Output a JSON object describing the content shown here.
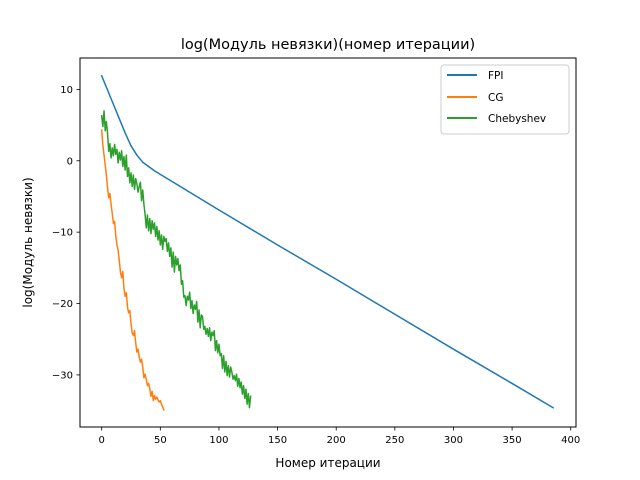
{
  "chart_data": {
    "type": "line",
    "title": "log(Модуль невязки)(номер итерации)",
    "xlabel": "Номер итерации",
    "ylabel": "log(Модуль невязки)",
    "xlim": [
      -18.5,
      404.5
    ],
    "ylim": [
      -37.3,
      14.4
    ],
    "xticks": [
      0,
      50,
      100,
      150,
      200,
      250,
      300,
      350,
      400
    ],
    "yticks": [
      10,
      0,
      -10,
      -20,
      -30
    ],
    "ytick_labels": [
      "10",
      "0",
      "−10",
      "−20",
      "−30"
    ],
    "grid": false,
    "legend_position": "top-right",
    "series": [
      {
        "name": "FPI",
        "color": "#1f77b4",
        "x": [
          0,
          5,
          10,
          15,
          20,
          25,
          30,
          35,
          40,
          45,
          50,
          100,
          150,
          200,
          250,
          300,
          350,
          385
        ],
        "y": [
          11.9,
          9.9,
          7.9,
          5.9,
          3.9,
          2.1,
          0.8,
          -0.2,
          -0.8,
          -1.4,
          -1.9,
          -6.9,
          -11.8,
          -16.6,
          -21.5,
          -26.4,
          -31.2,
          -34.6
        ]
      },
      {
        "name": "CG",
        "color": "#ff7f0e",
        "x": [
          0,
          1,
          2,
          3,
          4,
          5,
          6,
          7,
          8,
          9,
          10,
          11,
          12,
          13,
          14,
          15,
          16,
          17,
          18,
          19,
          20,
          21,
          22,
          23,
          24,
          25,
          26,
          27,
          28,
          29,
          30,
          31,
          32,
          33,
          34,
          35,
          36,
          37,
          38,
          39,
          40,
          41,
          42,
          43,
          44,
          45,
          46,
          47,
          48,
          49,
          50,
          51,
          52,
          53
        ],
        "y": [
          4.3,
          2.2,
          0.8,
          -0.6,
          -2.0,
          -3.8,
          -5.2,
          -4.6,
          -6.1,
          -7.4,
          -8.8,
          -8.5,
          -10.5,
          -11.8,
          -12.5,
          -14.0,
          -15.6,
          -16.4,
          -15.5,
          -17.9,
          -19.0,
          -18.5,
          -20.5,
          -21.3,
          -21.0,
          -22.8,
          -24.1,
          -24.5,
          -23.8,
          -25.5,
          -26.8,
          -26.4,
          -27.5,
          -28.2,
          -27.8,
          -28.9,
          -30.4,
          -29.9,
          -30.6,
          -31.5,
          -31.2,
          -31.9,
          -33.0,
          -32.3,
          -33.6,
          -32.9,
          -33.4,
          -33.1,
          -33.5,
          -33.8,
          -33.6,
          -34.1,
          -34.5,
          -34.9
        ]
      },
      {
        "name": "Chebyshev",
        "color": "#2ca02c",
        "x": [
          0,
          1,
          2,
          3,
          4,
          5,
          6,
          7,
          8,
          9,
          10,
          11,
          12,
          13,
          14,
          15,
          16,
          17,
          18,
          19,
          20,
          21,
          22,
          23,
          24,
          25,
          26,
          27,
          28,
          29,
          30,
          31,
          32,
          33,
          34,
          35,
          36,
          37,
          38,
          39,
          40,
          41,
          42,
          43,
          44,
          45,
          46,
          47,
          48,
          49,
          50,
          51,
          52,
          53,
          54,
          55,
          56,
          57,
          58,
          59,
          60,
          61,
          62,
          63,
          64,
          65,
          66,
          67,
          68,
          69,
          70,
          71,
          72,
          73,
          74,
          75,
          76,
          77,
          78,
          79,
          80,
          81,
          82,
          83,
          84,
          85,
          86,
          87,
          88,
          89,
          90,
          91,
          92,
          93,
          94,
          95,
          96,
          97,
          98,
          99,
          100,
          101,
          102,
          103,
          104,
          105,
          106,
          107,
          108,
          109,
          110,
          111,
          112,
          113,
          114,
          115,
          116,
          117,
          118,
          119,
          120,
          121,
          122,
          123,
          124,
          125,
          126,
          127
        ],
        "y": [
          6.3,
          4.8,
          7.0,
          4.2,
          5.5,
          3.8,
          1.3,
          2.4,
          0.4,
          1.8,
          0.7,
          2.3,
          0.9,
          1.6,
          -0.3,
          1.2,
          0.1,
          1.4,
          -0.8,
          0.6,
          -1.3,
          0.8,
          -2.2,
          -1.0,
          -3.1,
          -1.7,
          -3.6,
          -2.0,
          -4.0,
          -2.5,
          -3.2,
          -4.4,
          -3.6,
          -3.0,
          -5.6,
          -4.1,
          -6.1,
          -7.5,
          -9.4,
          -7.6,
          -9.8,
          -8.1,
          -10.2,
          -8.4,
          -9.6,
          -8.7,
          -10.6,
          -9.2,
          -11.1,
          -9.8,
          -11.8,
          -10.4,
          -12.4,
          -10.6,
          -11.3,
          -10.9,
          -12.7,
          -11.5,
          -13.4,
          -12.2,
          -14.9,
          -12.8,
          -15.6,
          -13.4,
          -14.6,
          -13.7,
          -15.4,
          -14.6,
          -17.3,
          -16.8,
          -19.1,
          -18.9,
          -20.3,
          -19.0,
          -19.5,
          -18.4,
          -20.7,
          -19.6,
          -21.4,
          -20.2,
          -20.8,
          -19.7,
          -22.6,
          -20.9,
          -23.4,
          -21.6,
          -21.8,
          -23.6,
          -23.2,
          -24.3,
          -23.5,
          -24.6,
          -23.4,
          -25.2,
          -24.0,
          -24.5,
          -23.8,
          -26.6,
          -25.2,
          -26.9,
          -25.7,
          -27.3,
          -27.0,
          -29.1,
          -27.3,
          -29.6,
          -28.1,
          -30.1,
          -28.7,
          -30.3,
          -28.9,
          -29.6,
          -30.6,
          -30.1,
          -30.8,
          -29.9,
          -31.6,
          -30.5,
          -31.8,
          -31.0,
          -32.7,
          -31.5,
          -33.3,
          -32.0,
          -34.1,
          -32.6,
          -34.6,
          -33.0
        ]
      }
    ]
  }
}
